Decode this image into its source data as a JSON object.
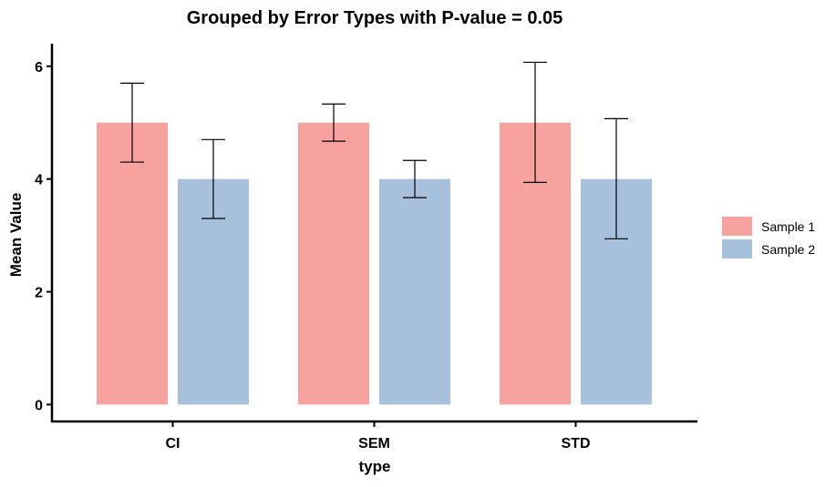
{
  "chart_data": {
    "type": "bar",
    "title": "Grouped by Error Types with P-value = 0.05",
    "xlabel": "type",
    "ylabel": "Mean Value",
    "categories": [
      "CI",
      "SEM",
      "STD"
    ],
    "series": [
      {
        "name": "Sample 1",
        "color": "#f7a29e",
        "values": [
          5,
          5,
          5
        ],
        "error_low": [
          4.3,
          4.67,
          3.94
        ],
        "error_high": [
          5.7,
          5.33,
          6.07
        ]
      },
      {
        "name": "Sample 2",
        "color": "#a7c1dc",
        "values": [
          4,
          4,
          4
        ],
        "error_low": [
          3.3,
          3.67,
          2.94
        ],
        "error_high": [
          4.7,
          4.33,
          5.07
        ]
      }
    ],
    "yticks": [
      0,
      2,
      4,
      6
    ],
    "ylim": [
      -0.3,
      6.4
    ],
    "grid": false,
    "legend_position": "right"
  }
}
